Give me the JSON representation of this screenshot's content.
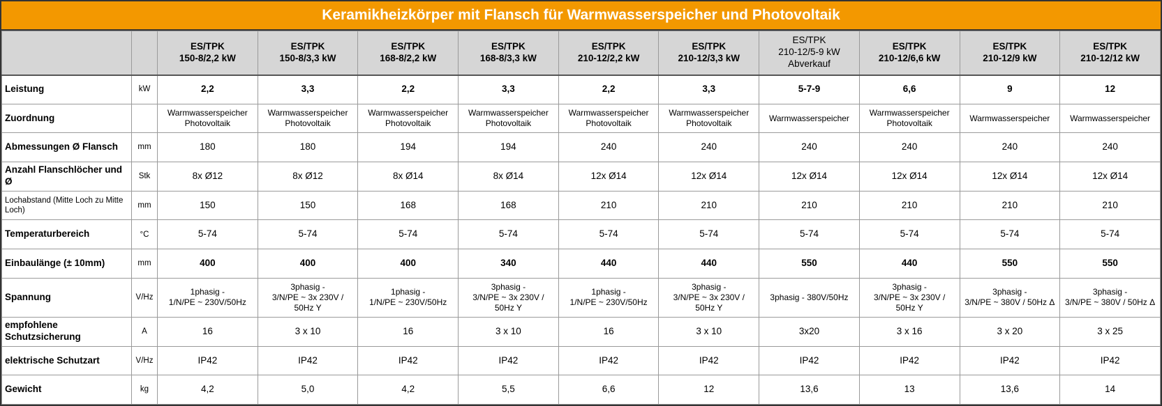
{
  "title": "Keramikheizkörper mit Flansch für Warmwasserspeicher und Photovoltaik",
  "table": {
    "header": [
      "ES/TPK\n150-8/2,2 kW",
      "ES/TPK\n150-8/3,3 kW",
      "ES/TPK\n168-8/2,2 kW",
      "ES/TPK\n168-8/3,3 kW",
      "ES/TPK\n210-12/2,2 kW",
      "ES/TPK\n210-12/3,3 kW",
      "ES/TPK\n210-12/5-9 kW\nAbverkauf",
      "ES/TPK\n210-12/6,6 kW",
      "ES/TPK\n210-12/9 kW",
      "ES/TPK\n210-12/12 kW"
    ],
    "rows": [
      {
        "label": "Leistung",
        "unit": "kW",
        "cells": [
          "2,2",
          "3,3",
          "2,2",
          "3,3",
          "2,2",
          "3,3",
          "5-7-9",
          "6,6",
          "9",
          "12"
        ]
      },
      {
        "label": "Zuordnung",
        "unit": null,
        "cells": [
          "Warmwasserspeicher\nPhotovoltaik",
          "Warmwasserspeicher\nPhotovoltaik",
          "Warmwasserspeicher\nPhotovoltaik",
          "Warmwasserspeicher\nPhotovoltaik",
          "Warmwasserspeicher\nPhotovoltaik",
          "Warmwasserspeicher\nPhotovoltaik",
          "Warmwasserspeicher",
          "Warmwasserspeicher\nPhotovoltaik",
          "Warmwasserspeicher",
          "Warmwasserspeicher"
        ]
      },
      {
        "label": "Abmessungen Ø Flansch",
        "unit": "mm",
        "cells": [
          "180",
          "180",
          "194",
          "194",
          "240",
          "240",
          "240",
          "240",
          "240",
          "240"
        ]
      },
      {
        "label": "Anzahl Flanschlöcher und Ø",
        "unit": "Stk",
        "cells": [
          "8x Ø12",
          "8x Ø12",
          "8x Ø14",
          "8x Ø14",
          "12x Ø14",
          "12x Ø14",
          "12x Ø14",
          "12x Ø14",
          "12x Ø14",
          "12x Ø14"
        ]
      },
      {
        "label": "Lochabstand (Mitte Loch zu Mitte Loch)",
        "unit": "mm",
        "cells": [
          "150",
          "150",
          "168",
          "168",
          "210",
          "210",
          "210",
          "210",
          "210",
          "210"
        ]
      },
      {
        "label": "Temperaturbereich",
        "unit": "°C",
        "cells": [
          "5-74",
          "5-74",
          "5-74",
          "5-74",
          "5-74",
          "5-74",
          "5-74",
          "5-74",
          "5-74",
          "5-74"
        ]
      },
      {
        "label": "Einbaulänge (± 10mm)",
        "unit": "mm",
        "cells": [
          "400",
          "400",
          "400",
          "340",
          "440",
          "440",
          "550",
          "440",
          "550",
          "550"
        ]
      },
      {
        "label": "Spannung",
        "unit": "V/Hz",
        "cells": [
          "1phasig -\n1/N/PE ~ 230V/50Hz",
          "3phasig -\n3/N/PE ~ 3x 230V /\n50Hz Y",
          "1phasig -\n1/N/PE ~ 230V/50Hz",
          "3phasig -\n3/N/PE ~ 3x 230V /\n50Hz Y",
          "1phasig -\n1/N/PE ~ 230V/50Hz",
          "3phasig -\n3/N/PE ~ 3x 230V /\n50Hz Y",
          "3phasig - 380V/50Hz",
          "3phasig -\n3/N/PE ~ 3x 230V /\n50Hz Y",
          "3phasig -\n3/N/PE ~ 380V / 50Hz Δ",
          "3phasig -\n3/N/PE ~ 380V / 50Hz Δ"
        ]
      },
      {
        "label": "empfohlene Schutzsicherung",
        "unit": "A",
        "cells": [
          "16",
          "3 x 10",
          "16",
          "3 x 10",
          "16",
          "3 x 10",
          "3x20",
          "3 x 16",
          "3 x 20",
          "3 x 25"
        ]
      },
      {
        "label": "elektrische Schutzart",
        "unit": "V/Hz",
        "cells": [
          "IP42",
          "IP42",
          "IP42",
          "IP42",
          "IP42",
          "IP42",
          "IP42",
          "IP42",
          "IP42",
          "IP42"
        ]
      },
      {
        "label": "Gewicht",
        "unit": "kg",
        "cells": [
          "4,2",
          "5,0",
          "4,2",
          "5,5",
          "6,6",
          "12",
          "13,6",
          "13",
          "13,6",
          "14"
        ]
      }
    ]
  }
}
